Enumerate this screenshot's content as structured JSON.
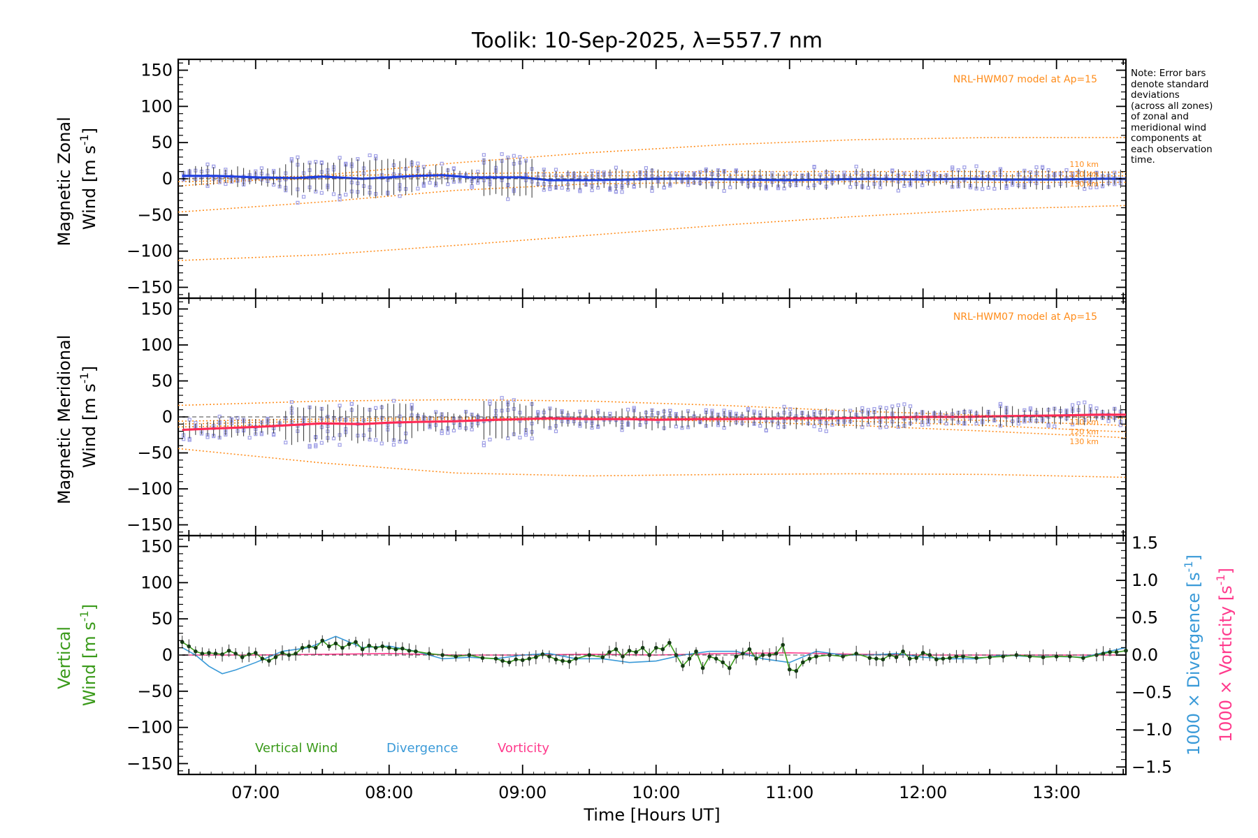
{
  "colors": {
    "zonal_line": "#1f3fe0",
    "meridional_line": "#ff2a55",
    "model": "#ff8c1a",
    "zone_markers": "#9f9fe6",
    "vertical": "#3a9a1a",
    "divergence": "#3a9ad8",
    "vorticity": "#ff3a8c",
    "axis": "#000000"
  },
  "note": {
    "text": "Note: Error bars\ndenote standard\ndeviations\n(across all zones)\nof zonal and\nmeridional wind\ncomponents at\neach observation\ntime."
  },
  "chart_data": [
    {
      "type": "line",
      "title": "Toolik: 10-Sep-2025, λ=557.7 nm",
      "panel": "zonal",
      "ylabel_line1": "Magnetic Zonal",
      "ylabel_line2": "Wind [m s",
      "ylabel_sup": "-1",
      "ylabel_end": "]",
      "ylim": [
        -165,
        165
      ],
      "yticks": [
        "150",
        "100",
        "50",
        "0",
        "−50",
        "−100",
        "−150"
      ],
      "ytick_values": [
        150,
        100,
        50,
        0,
        -50,
        -100,
        -150
      ],
      "xlim": [
        6.42,
        13.52
      ],
      "model_label": "NRL-HWM07 model at Ap=15",
      "model_heights": [
        "110 km",
        "120 km",
        "130 km"
      ],
      "series": [
        {
          "name": "Zonal wind",
          "x": [
            6.45,
            6.7,
            7.0,
            7.3,
            7.5,
            7.8,
            8.0,
            8.2,
            8.4,
            8.6,
            8.8,
            9.0,
            9.2,
            9.5,
            9.8,
            10.0,
            10.3,
            10.6,
            11.0,
            11.3,
            11.6,
            12.0,
            12.3,
            12.6,
            13.0,
            13.3,
            13.52
          ],
          "values": [
            4,
            4,
            2,
            1,
            3,
            0,
            2,
            4,
            5,
            2,
            2,
            2,
            -2,
            -2,
            -1,
            0,
            0,
            -1,
            -2,
            -1,
            0,
            -1,
            0,
            -1,
            -1,
            0,
            0
          ]
        },
        {
          "name": "Model upper",
          "x": [
            6.42,
            7.5,
            8.5,
            9.5,
            10.5,
            11.5,
            12.5,
            13.52
          ],
          "values": [
            -10,
            5,
            22,
            36,
            47,
            54,
            57,
            57
          ]
        },
        {
          "name": "Model 110 km",
          "x": [
            6.42,
            7.5,
            8.5,
            9.5,
            10.5,
            11.5,
            12.5,
            13.52
          ],
          "values": [
            0,
            4,
            7,
            9,
            10,
            10,
            10,
            9
          ]
        },
        {
          "name": "Model 120 km",
          "x": [
            6.42,
            7.5,
            8.5,
            9.5,
            10.5,
            11.5,
            12.5,
            13.52
          ],
          "values": [
            -4,
            0,
            3,
            4,
            5,
            5,
            4,
            4
          ]
        },
        {
          "name": "Model 130 km",
          "x": [
            6.42,
            7.5,
            8.5,
            9.5,
            10.5,
            11.5,
            12.5,
            13.52
          ],
          "values": [
            -46,
            -32,
            -16,
            -7,
            -5,
            -4,
            -5,
            -5
          ]
        },
        {
          "name": "Model lower",
          "x": [
            6.42,
            7.5,
            8.5,
            9.5,
            10.5,
            11.5,
            12.5,
            13.52
          ],
          "values": [
            -113,
            -105,
            -92,
            -78,
            -64,
            -52,
            -42,
            -37
          ]
        }
      ]
    },
    {
      "type": "line",
      "panel": "meridional",
      "ylabel_line1": "Magnetic Meridional",
      "ylabel_line2": "Wind [m s",
      "ylabel_sup": "-1",
      "ylabel_end": "]",
      "ylim": [
        -165,
        165
      ],
      "yticks": [
        "150",
        "100",
        "50",
        "0",
        "−50",
        "−100",
        "−150"
      ],
      "ytick_values": [
        150,
        100,
        50,
        0,
        -50,
        -100,
        -150
      ],
      "xlim": [
        6.42,
        13.52
      ],
      "model_label": "NRL-HWM07 model at Ap=15",
      "model_heights": [
        "110 km",
        "120 km",
        "130 km"
      ],
      "series": [
        {
          "name": "Meridional wind",
          "x": [
            6.45,
            6.7,
            7.0,
            7.3,
            7.5,
            7.8,
            8.0,
            8.2,
            8.5,
            8.8,
            9.0,
            9.2,
            9.5,
            9.8,
            10.0,
            10.3,
            10.6,
            11.0,
            11.3,
            11.6,
            12.0,
            12.3,
            12.6,
            13.0,
            13.3,
            13.52
          ],
          "values": [
            -18,
            -16,
            -14,
            -11,
            -9,
            -10,
            -8,
            -7,
            -6,
            -4,
            -3,
            -2,
            -3,
            -3,
            -4,
            -3,
            -3,
            -2,
            -2,
            -1,
            0,
            0,
            1,
            2,
            3,
            3
          ]
        },
        {
          "name": "Model upper",
          "x": [
            6.42,
            7.5,
            8.5,
            9.5,
            10.5,
            11.5,
            12.5,
            13.52
          ],
          "values": [
            16,
            22,
            24,
            22,
            16,
            8,
            2,
            -2
          ]
        },
        {
          "name": "Model 110 km",
          "x": [
            6.42,
            7.5,
            8.5,
            9.5,
            10.5,
            11.5,
            12.5,
            13.52
          ],
          "values": [
            -14,
            -10,
            -6,
            -3,
            -1,
            -2,
            -5,
            -12
          ]
        },
        {
          "name": "Model 120 km",
          "x": [
            6.42,
            7.5,
            8.5,
            9.5,
            10.5,
            11.5,
            12.5,
            13.52
          ],
          "values": [
            -10,
            -6,
            -3,
            -1,
            -2,
            -6,
            -12,
            -21
          ]
        },
        {
          "name": "Model 130 km",
          "x": [
            6.42,
            7.5,
            8.5,
            9.5,
            10.5,
            11.5,
            12.5,
            13.52
          ],
          "values": [
            -6,
            -3,
            -1,
            -2,
            -6,
            -12,
            -20,
            -29
          ]
        },
        {
          "name": "Model lower",
          "x": [
            6.42,
            7.5,
            8.5,
            9.5,
            10.5,
            11.5,
            12.5,
            13.52
          ],
          "values": [
            -44,
            -64,
            -78,
            -82,
            -80,
            -79,
            -80,
            -84
          ]
        }
      ]
    },
    {
      "type": "line",
      "panel": "vertical",
      "ylabel_line1": "Vertical",
      "ylabel_line2": "Wind [m s",
      "ylabel_sup": "-1",
      "ylabel_end": "]",
      "ylim": [
        -165,
        165
      ],
      "yticks": [
        "150",
        "100",
        "50",
        "0",
        "−50",
        "−100",
        "−150"
      ],
      "ytick_values": [
        150,
        100,
        50,
        0,
        -50,
        -100,
        -150
      ],
      "y2lim": [
        -1.6,
        1.6
      ],
      "y2ticks": [
        "1.5",
        "1.0",
        "0.5",
        "0.0",
        "−0.5",
        "−1.0",
        "−1.5"
      ],
      "y2tick_values": [
        1.5,
        1.0,
        0.5,
        0.0,
        -0.5,
        -1.0,
        -1.5
      ],
      "y2label_div": "1000 × Divergence [s",
      "y2label_vort": "1000 × Vorticity [s",
      "y2label_sup": "-1",
      "y2label_end": "]",
      "xlim": [
        6.42,
        13.52
      ],
      "xlabel": "Time [Hours UT]",
      "xticks": [
        "07:00",
        "08:00",
        "09:00",
        "10:00",
        "11:00",
        "12:00",
        "13:00"
      ],
      "xtick_values": [
        7,
        8,
        9,
        10,
        11,
        12,
        13
      ],
      "legend": [
        "Vertical Wind",
        "Divergence",
        "Vorticity"
      ],
      "series": [
        {
          "name": "Vertical Wind",
          "x": [
            6.45,
            6.5,
            6.55,
            6.6,
            6.65,
            6.7,
            6.75,
            6.8,
            6.85,
            6.9,
            6.95,
            7.0,
            7.05,
            7.1,
            7.15,
            7.2,
            7.25,
            7.3,
            7.35,
            7.4,
            7.45,
            7.5,
            7.55,
            7.6,
            7.65,
            7.7,
            7.75,
            7.8,
            7.85,
            7.9,
            7.95,
            8.0,
            8.05,
            8.1,
            8.15,
            8.2,
            8.3,
            8.4,
            8.5,
            8.6,
            8.7,
            8.8,
            8.85,
            8.9,
            8.95,
            9.0,
            9.05,
            9.1,
            9.15,
            9.2,
            9.25,
            9.3,
            9.35,
            9.4,
            9.5,
            9.6,
            9.65,
            9.7,
            9.75,
            9.8,
            9.85,
            9.9,
            9.95,
            10.0,
            10.05,
            10.1,
            10.15,
            10.2,
            10.25,
            10.3,
            10.35,
            10.4,
            10.45,
            10.5,
            10.55,
            10.6,
            10.65,
            10.7,
            10.75,
            10.8,
            10.85,
            10.9,
            10.95,
            11.0,
            11.05,
            11.1,
            11.15,
            11.2,
            11.3,
            11.4,
            11.5,
            11.6,
            11.65,
            11.7,
            11.75,
            11.8,
            11.85,
            11.9,
            11.95,
            12.0,
            12.05,
            12.1,
            12.15,
            12.2,
            12.25,
            12.3,
            12.4,
            12.5,
            12.6,
            12.7,
            12.8,
            12.9,
            13.0,
            13.1,
            13.2,
            13.3,
            13.35,
            13.4,
            13.45,
            13.52
          ],
          "values": [
            18,
            12,
            5,
            2,
            3,
            2,
            1,
            6,
            2,
            -3,
            1,
            3,
            -5,
            -8,
            -3,
            3,
            0,
            2,
            10,
            12,
            10,
            20,
            12,
            16,
            10,
            15,
            18,
            8,
            13,
            10,
            12,
            10,
            8,
            9,
            6,
            5,
            2,
            0,
            -2,
            0,
            -4,
            -5,
            -8,
            -10,
            -6,
            -7,
            -5,
            -3,
            1,
            -2,
            -6,
            -8,
            -9,
            -5,
            0,
            -3,
            4,
            8,
            -2,
            6,
            4,
            10,
            0,
            10,
            8,
            17,
            0,
            -15,
            -5,
            5,
            -18,
            -2,
            -5,
            -10,
            -18,
            -2,
            2,
            8,
            -5,
            0,
            0,
            2,
            14,
            -20,
            -22,
            -10,
            -5,
            -2,
            0,
            -2,
            2,
            -4,
            -5,
            -6,
            0,
            -3,
            5,
            -5,
            -4,
            3,
            0,
            -6,
            -5,
            -4,
            -2,
            -2,
            -4,
            -3,
            -2,
            0,
            -2,
            -3,
            -2,
            -2,
            -4,
            0,
            2,
            4,
            4,
            6
          ]
        },
        {
          "name": "Divergence",
          "x": [
            6.45,
            6.55,
            6.65,
            6.75,
            6.85,
            7.0,
            7.2,
            7.4,
            7.6,
            7.8,
            8.0,
            8.2,
            8.4,
            8.6,
            8.8,
            9.0,
            9.2,
            9.4,
            9.6,
            9.8,
            10.0,
            10.2,
            10.4,
            10.6,
            10.8,
            11.0,
            11.2,
            11.4,
            11.6,
            11.8,
            12.0,
            12.2,
            12.4,
            12.6,
            12.8,
            13.0,
            13.2,
            13.52
          ],
          "y2": [
            0.1,
            0.0,
            -0.15,
            -0.25,
            -0.2,
            -0.1,
            0.05,
            0.1,
            0.25,
            0.1,
            0.12,
            0.05,
            -0.05,
            -0.03,
            -0.05,
            0.0,
            0.02,
            -0.05,
            -0.05,
            -0.1,
            -0.08,
            0.0,
            0.05,
            0.05,
            -0.05,
            -0.1,
            0.05,
            0.0,
            0.0,
            0.02,
            -0.03,
            -0.05,
            -0.05,
            0.0,
            -0.02,
            -0.02,
            -0.03,
            0.1
          ]
        },
        {
          "name": "Vorticity",
          "x": [
            6.45,
            7.0,
            7.5,
            8.0,
            8.5,
            9.0,
            9.5,
            10.0,
            10.5,
            11.0,
            11.5,
            12.0,
            12.5,
            13.0,
            13.52
          ],
          "y2": [
            0.0,
            0.0,
            0.01,
            0.02,
            0.0,
            0.0,
            0.01,
            0.0,
            0.02,
            0.03,
            0.01,
            0.0,
            0.0,
            0.0,
            0.0
          ]
        }
      ]
    }
  ]
}
